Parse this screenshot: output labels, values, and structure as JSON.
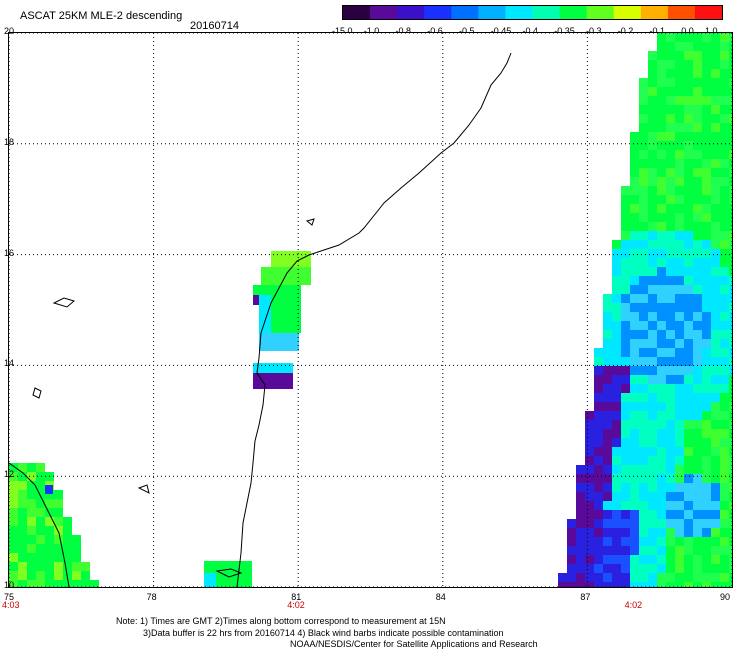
{
  "header": {
    "title": "ASCAT 25KM MLE-2 descending",
    "date": "20160714"
  },
  "colorbar": {
    "labels": [
      "-15.0",
      "-1.0",
      "-0.8",
      "-0.6",
      "-0.5",
      "-0.45",
      "-0.4",
      "-0.35",
      "-0.3",
      "-0.2",
      "-0.1",
      "0.0",
      "1.0"
    ],
    "colors": [
      "#2a0040",
      "#5a0a9a",
      "#3a10c8",
      "#1a30ff",
      "#0070ff",
      "#00b0ff",
      "#00e8ff",
      "#00ffb0",
      "#00ff40",
      "#60ff20",
      "#d8ff00",
      "#ffb000",
      "#ff5000",
      "#ff1010"
    ]
  },
  "map": {
    "lat_labels": [
      "20",
      "18",
      "16",
      "14",
      "12",
      "10"
    ],
    "lon_labels": [
      "75",
      "78",
      "81",
      "84",
      "87",
      "90"
    ],
    "lat_range": [
      10,
      20
    ],
    "lon_range": [
      75,
      90
    ],
    "time_labels": [
      {
        "text": "4:03",
        "lon": 75
      },
      {
        "text": "4:02",
        "lon": 81
      },
      {
        "text": "4:02",
        "lon": 88
      }
    ]
  },
  "notes": {
    "line1": "Note: 1) Times are GMT 2)Times along bottom correspond to measurement at 15N",
    "line2": "3)Data buffer is 22 hrs from 20160714 4) Black wind barbs indicate possible contamination",
    "line3": "NOAA/NESDIS/Center for Satellite Applications and Research"
  }
}
